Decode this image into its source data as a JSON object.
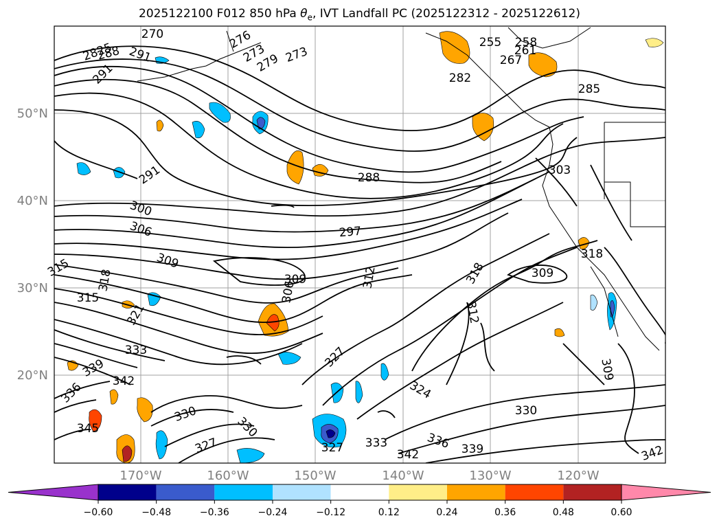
{
  "title_main": "2025122100 F012 850 hPa ",
  "title_symbol": "θ",
  "title_sub": "e",
  "title_rest": ", IVT Landfall PC (2025122312 - 2025122612)",
  "lat_labels": [
    "50°N",
    "40°N",
    "30°N",
    "20°N"
  ],
  "lon_labels": [
    "170°W",
    "160°W",
    "150°W",
    "140°W",
    "130°W",
    "120°W"
  ],
  "contour_labels": [
    "2825",
    "288",
    "291",
    "270",
    "273",
    "276",
    "279",
    "255",
    "258",
    "261",
    "267",
    "282",
    "285",
    "291",
    "291",
    "288",
    "303",
    "300",
    "306",
    "297",
    "309",
    "315",
    "318",
    "315",
    "321",
    "309",
    "306",
    "312",
    "318",
    "309",
    "312",
    "333",
    "339",
    "342",
    "336",
    "345",
    "327",
    "330",
    "330",
    "327",
    "324",
    "327",
    "333",
    "336",
    "339",
    "342",
    "330",
    "309",
    "318",
    "342",
    "273"
  ],
  "colorbar": {
    "ticks": [
      "−0.60",
      "−0.48",
      "−0.36",
      "−0.24",
      "−0.12",
      "0.12",
      "0.24",
      "0.36",
      "0.48",
      "0.60"
    ],
    "colors": [
      "#9932cc",
      "#00008b",
      "#3a5bcc",
      "#00bfff",
      "#b0e2ff",
      "#ffffff",
      "#ffee88",
      "#ffa500",
      "#ff4500",
      "#b22222",
      "#ff88aa"
    ]
  }
}
